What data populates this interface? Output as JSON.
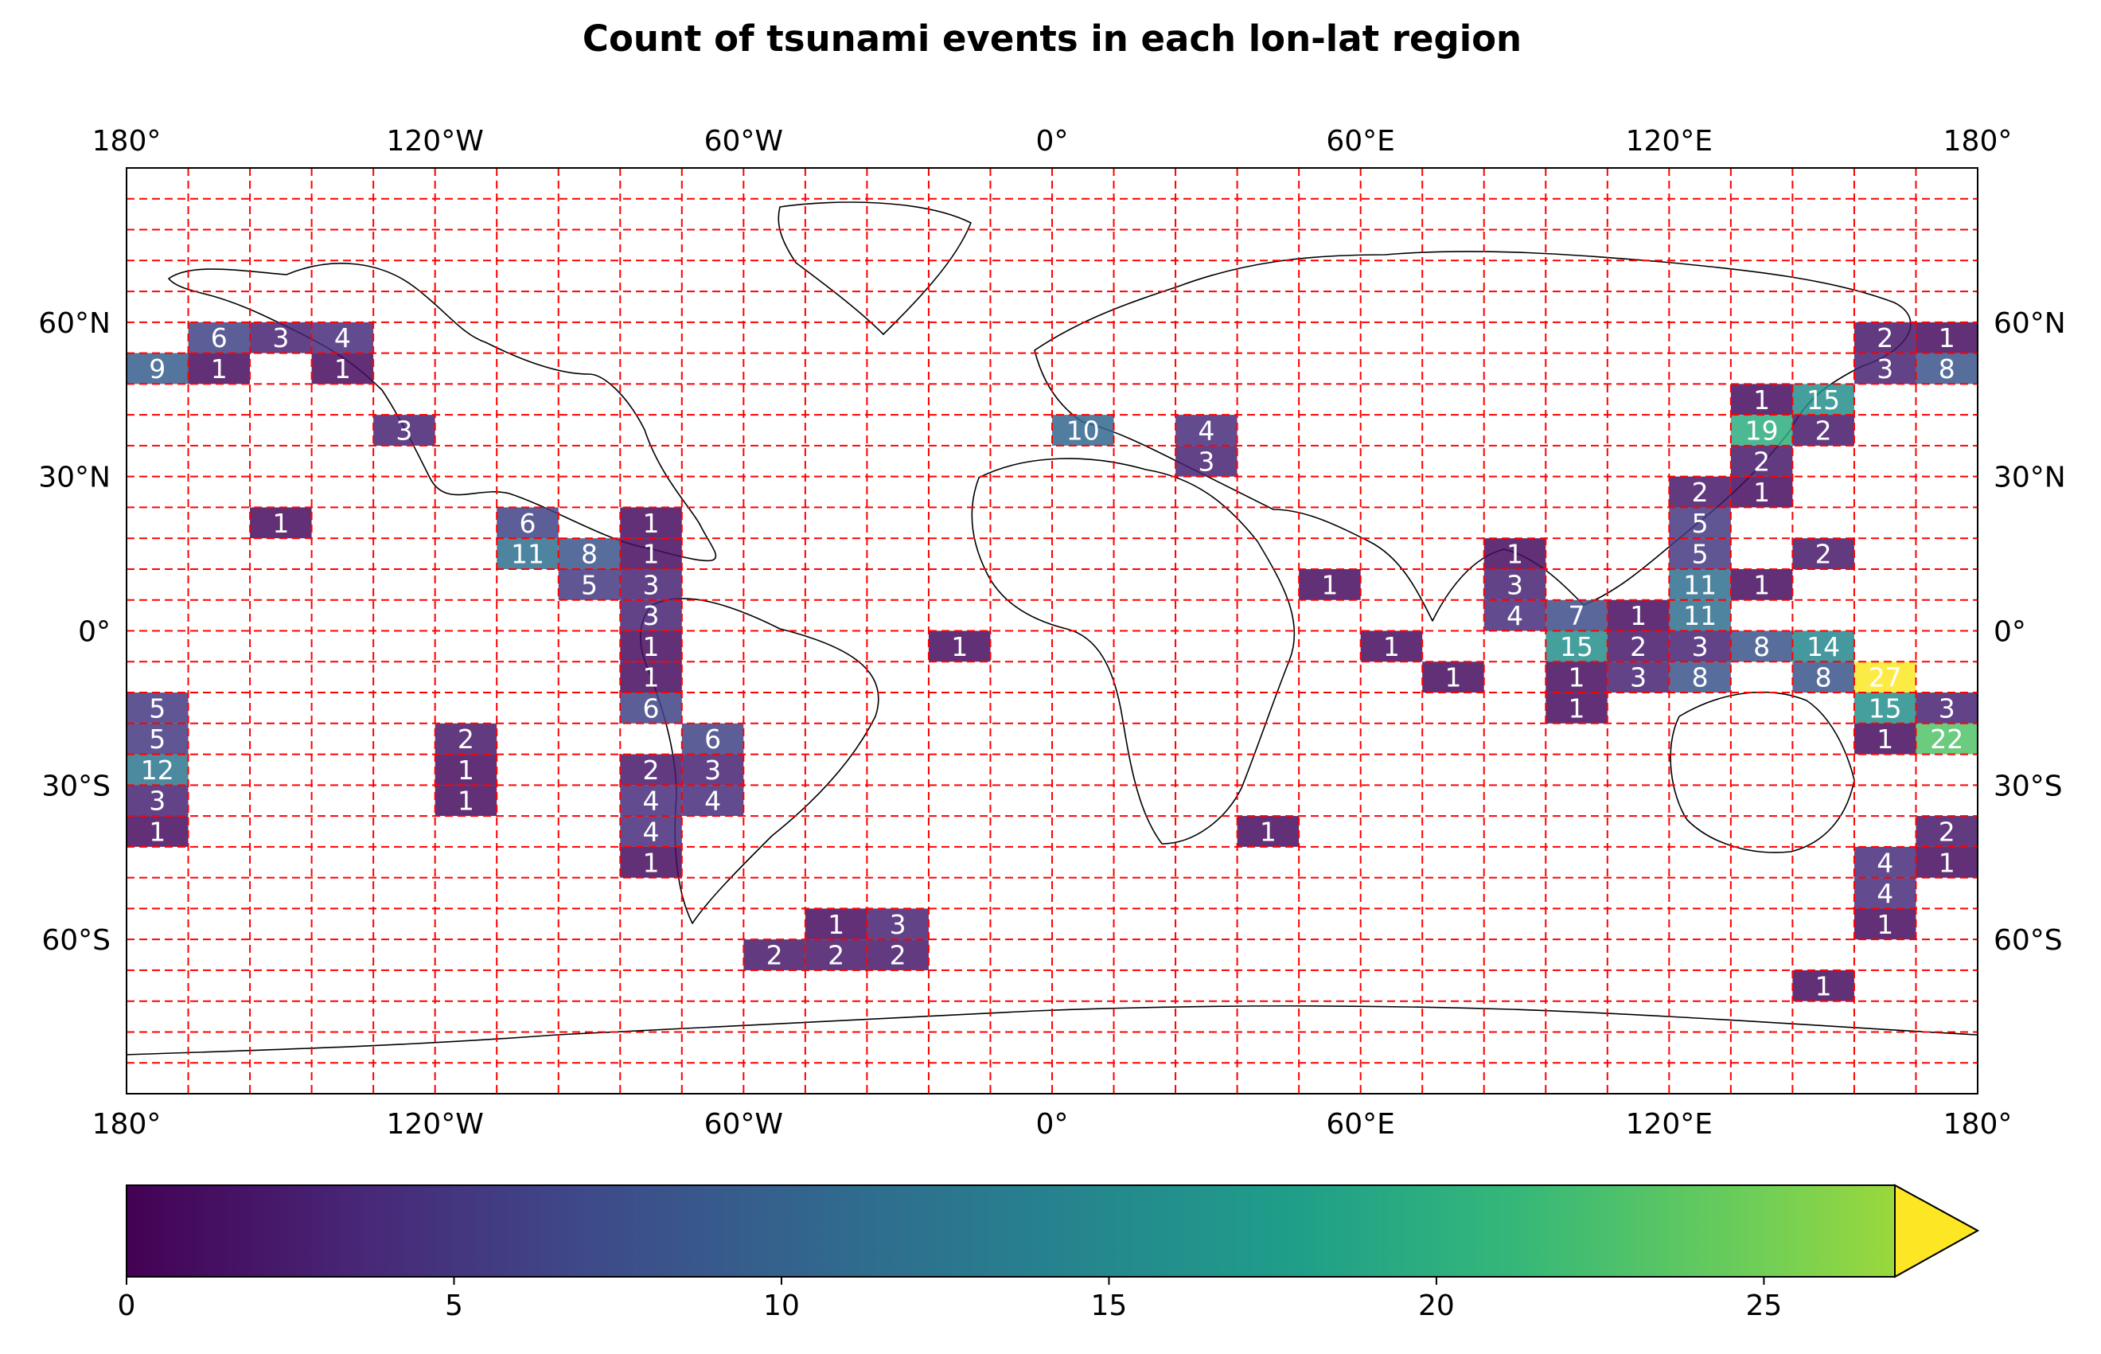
{
  "chart_data": {
    "type": "heatmap",
    "title": "Count of tsunami events in each lon-lat region",
    "xlabel": "",
    "ylabel": "",
    "x_tick_labels": [
      "180°",
      "120°W",
      "60°W",
      "0°",
      "60°E",
      "120°E",
      "180°"
    ],
    "x_tick_values": [
      -180,
      -120,
      -60,
      0,
      60,
      120,
      180
    ],
    "y_tick_labels": [
      "60°N",
      "30°N",
      "0°",
      "30°S",
      "60°S"
    ],
    "y_tick_values": [
      60,
      30,
      0,
      -30,
      -60
    ],
    "xlim": [
      -180,
      180
    ],
    "ylim": [
      -90,
      90
    ],
    "cell_lon_width": 12,
    "cell_lat_height": 6,
    "grid": true,
    "colormap": "viridis",
    "colorbar": {
      "orientation": "horizontal",
      "placement": "bottom",
      "range": [
        0,
        27
      ],
      "extend": "max",
      "tick_labels": [
        "0",
        "5",
        "10",
        "15",
        "20",
        "25"
      ],
      "tick_values": [
        0,
        5,
        10,
        15,
        20,
        25
      ]
    },
    "cells": [
      {
        "lon": -168,
        "lat": 54,
        "value": 6
      },
      {
        "lon": -156,
        "lat": 54,
        "value": 3
      },
      {
        "lon": -144,
        "lat": 54,
        "value": 4
      },
      {
        "lon": -180,
        "lat": 48,
        "value": 9
      },
      {
        "lon": -168,
        "lat": 48,
        "value": 1
      },
      {
        "lon": -144,
        "lat": 48,
        "value": 1
      },
      {
        "lon": -132,
        "lat": 36,
        "value": 3
      },
      {
        "lon": -156,
        "lat": 18,
        "value": 1
      },
      {
        "lon": -108,
        "lat": 18,
        "value": 6
      },
      {
        "lon": -84,
        "lat": 18,
        "value": 1
      },
      {
        "lon": -108,
        "lat": 12,
        "value": 11
      },
      {
        "lon": -96,
        "lat": 12,
        "value": 8
      },
      {
        "lon": -84,
        "lat": 12,
        "value": 1
      },
      {
        "lon": -96,
        "lat": 6,
        "value": 5
      },
      {
        "lon": -84,
        "lat": 6,
        "value": 3
      },
      {
        "lon": -84,
        "lat": 0,
        "value": 3
      },
      {
        "lon": -84,
        "lat": -6,
        "value": 1
      },
      {
        "lon": -84,
        "lat": -12,
        "value": 1
      },
      {
        "lon": -84,
        "lat": -18,
        "value": 6
      },
      {
        "lon": -180,
        "lat": -18,
        "value": 5
      },
      {
        "lon": -180,
        "lat": -24,
        "value": 5
      },
      {
        "lon": -180,
        "lat": -30,
        "value": 12
      },
      {
        "lon": -180,
        "lat": -36,
        "value": 3
      },
      {
        "lon": -180,
        "lat": -42,
        "value": 1
      },
      {
        "lon": -120,
        "lat": -24,
        "value": 2
      },
      {
        "lon": -120,
        "lat": -30,
        "value": 1
      },
      {
        "lon": -120,
        "lat": -36,
        "value": 1
      },
      {
        "lon": -72,
        "lat": -24,
        "value": 6
      },
      {
        "lon": -84,
        "lat": -30,
        "value": 2
      },
      {
        "lon": -72,
        "lat": -30,
        "value": 3
      },
      {
        "lon": -84,
        "lat": -36,
        "value": 4
      },
      {
        "lon": -72,
        "lat": -36,
        "value": 4
      },
      {
        "lon": -84,
        "lat": -42,
        "value": 4
      },
      {
        "lon": -84,
        "lat": -48,
        "value": 1
      },
      {
        "lon": -48,
        "lat": -60,
        "value": 1
      },
      {
        "lon": -36,
        "lat": -60,
        "value": 3
      },
      {
        "lon": -60,
        "lat": -66,
        "value": 2
      },
      {
        "lon": -48,
        "lat": -66,
        "value": 2
      },
      {
        "lon": -36,
        "lat": -66,
        "value": 2
      },
      {
        "lon": -24,
        "lat": -6,
        "value": 1
      },
      {
        "lon": 0,
        "lat": 36,
        "value": 10
      },
      {
        "lon": 24,
        "lat": 36,
        "value": 4
      },
      {
        "lon": 24,
        "lat": 30,
        "value": 3
      },
      {
        "lon": 48,
        "lat": 6,
        "value": 1
      },
      {
        "lon": 60,
        "lat": -6,
        "value": 1
      },
      {
        "lon": 72,
        "lat": -12,
        "value": 1
      },
      {
        "lon": 36,
        "lat": -42,
        "value": 1
      },
      {
        "lon": 84,
        "lat": 12,
        "value": 1
      },
      {
        "lon": 84,
        "lat": 6,
        "value": 3
      },
      {
        "lon": 84,
        "lat": 0,
        "value": 4
      },
      {
        "lon": 96,
        "lat": 0,
        "value": 7
      },
      {
        "lon": 108,
        "lat": 0,
        "value": 1
      },
      {
        "lon": 96,
        "lat": -6,
        "value": 15
      },
      {
        "lon": 108,
        "lat": -6,
        "value": 2
      },
      {
        "lon": 96,
        "lat": -12,
        "value": 1
      },
      {
        "lon": 108,
        "lat": -12,
        "value": 3
      },
      {
        "lon": 96,
        "lat": -18,
        "value": 1
      },
      {
        "lon": 132,
        "lat": 42,
        "value": 1
      },
      {
        "lon": 144,
        "lat": 42,
        "value": 15
      },
      {
        "lon": 132,
        "lat": 36,
        "value": 19
      },
      {
        "lon": 144,
        "lat": 36,
        "value": 2
      },
      {
        "lon": 132,
        "lat": 30,
        "value": 2
      },
      {
        "lon": 132,
        "lat": 24,
        "value": 1
      },
      {
        "lon": 120,
        "lat": 24,
        "value": 2
      },
      {
        "lon": 120,
        "lat": 18,
        "value": 5
      },
      {
        "lon": 120,
        "lat": 12,
        "value": 5
      },
      {
        "lon": 144,
        "lat": 12,
        "value": 2
      },
      {
        "lon": 120,
        "lat": 6,
        "value": 11
      },
      {
        "lon": 132,
        "lat": 6,
        "value": 1
      },
      {
        "lon": 120,
        "lat": 0,
        "value": 11
      },
      {
        "lon": 120,
        "lat": -6,
        "value": 3
      },
      {
        "lon": 132,
        "lat": -6,
        "value": 8
      },
      {
        "lon": 144,
        "lat": -6,
        "value": 14
      },
      {
        "lon": 120,
        "lat": -12,
        "value": 8
      },
      {
        "lon": 144,
        "lat": -12,
        "value": 8
      },
      {
        "lon": 156,
        "lat": -12,
        "value": 27
      },
      {
        "lon": 156,
        "lat": -18,
        "value": 15
      },
      {
        "lon": 168,
        "lat": -18,
        "value": 3
      },
      {
        "lon": 156,
        "lat": -24,
        "value": 1
      },
      {
        "lon": 168,
        "lat": -24,
        "value": 22
      },
      {
        "lon": 168,
        "lat": -42,
        "value": 2
      },
      {
        "lon": 156,
        "lat": -48,
        "value": 4
      },
      {
        "lon": 168,
        "lat": -48,
        "value": 1
      },
      {
        "lon": 156,
        "lat": -54,
        "value": 4
      },
      {
        "lon": 156,
        "lat": -60,
        "value": 1
      },
      {
        "lon": 144,
        "lat": -72,
        "value": 1
      },
      {
        "lon": 156,
        "lat": 54,
        "value": 2
      },
      {
        "lon": 168,
        "lat": 54,
        "value": 1
      },
      {
        "lon": 156,
        "lat": 48,
        "value": 3
      },
      {
        "lon": 168,
        "lat": 48,
        "value": 8
      }
    ]
  }
}
